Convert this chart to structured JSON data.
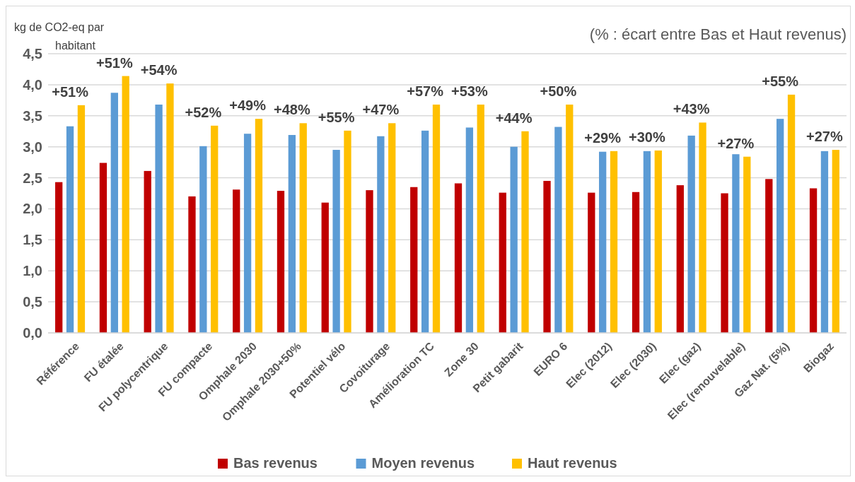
{
  "chart_data": {
    "type": "bar",
    "subtitle": "(% : écart entre Bas et Haut revenus)",
    "ylabel": "kg de CO2-eq par habitant",
    "categories": [
      "Référence",
      "FU étalée",
      "FU polycentrique",
      "FU compacte",
      "Omphale 2030",
      "Omphale 2030+50%",
      "Potentiel vélo",
      "Covoiturage",
      "Amélioration TC",
      "Zone 30",
      "Petit gabarit",
      "EURO 6",
      "Elec (2012)",
      "Elec (2030)",
      "Elec (gaz)",
      "Elec (renouvelable)",
      "Gaz Nat. (5%)",
      "Biogaz"
    ],
    "series": [
      {
        "name": "Bas revenus",
        "color": "#c00000",
        "values": [
          2.43,
          2.74,
          2.61,
          2.2,
          2.31,
          2.29,
          2.1,
          2.3,
          2.35,
          2.41,
          2.26,
          2.45,
          2.26,
          2.27,
          2.38,
          2.25,
          2.48,
          2.33
        ]
      },
      {
        "name": "Moyen revenus",
        "color": "#5b9bd5",
        "values": [
          3.33,
          3.87,
          3.68,
          3.01,
          3.21,
          3.19,
          2.95,
          3.17,
          3.26,
          3.31,
          3.0,
          3.32,
          2.92,
          2.93,
          3.18,
          2.88,
          3.45,
          2.93
        ]
      },
      {
        "name": "Haut revenus",
        "color": "#ffc000",
        "values": [
          3.67,
          4.14,
          4.02,
          3.34,
          3.45,
          3.38,
          3.26,
          3.38,
          3.68,
          3.68,
          3.25,
          3.68,
          2.93,
          2.94,
          3.39,
          2.84,
          3.84,
          2.95
        ]
      }
    ],
    "ylim": [
      0,
      4.5
    ],
    "yticks": [
      {
        "value": 0,
        "label": "0,0"
      },
      {
        "value": 0.5,
        "label": "0,5"
      },
      {
        "value": 1,
        "label": "1,0"
      },
      {
        "value": 1.5,
        "label": "1,5"
      },
      {
        "value": 2,
        "label": "2,0"
      },
      {
        "value": 2.5,
        "label": "2,5"
      },
      {
        "value": 3,
        "label": "3,0"
      },
      {
        "value": 3.5,
        "label": "3,5"
      },
      {
        "value": 4,
        "label": "4,0"
      },
      {
        "value": 4.5,
        "label": "4,5"
      }
    ],
    "grid": "y",
    "legend": "bottom",
    "annotations": [
      {
        "text": "+51%",
        "x": "Référence",
        "y": 3.67
      },
      {
        "text": "+51%",
        "x": "FU étalée",
        "y": 4.14
      },
      {
        "text": "+54%",
        "x": "FU polycentrique",
        "y": 4.02
      },
      {
        "text": "+52%",
        "x": "FU compacte",
        "y": 3.34
      },
      {
        "text": "+49%",
        "x": "Omphale 2030",
        "y": 3.45
      },
      {
        "text": "+48%",
        "x": "Omphale 2030+50%",
        "y": 3.38
      },
      {
        "text": "+55%",
        "x": "Potentiel vélo",
        "y": 3.26
      },
      {
        "text": "+47%",
        "x": "Covoiturage",
        "y": 3.38
      },
      {
        "text": "+57%",
        "x": "Amélioration TC",
        "y": 3.68
      },
      {
        "text": "+53%",
        "x": "Zone 30",
        "y": 3.68
      },
      {
        "text": "+44%",
        "x": "Petit gabarit",
        "y": 3.25
      },
      {
        "text": "+50%",
        "x": "EURO 6",
        "y": 3.68
      },
      {
        "text": "+29%",
        "x": "Elec (2012)",
        "y": 2.93
      },
      {
        "text": "+30%",
        "x": "Elec (2030)",
        "y": 2.94
      },
      {
        "text": "+43%",
        "x": "Elec (gaz)",
        "y": 3.39
      },
      {
        "text": "+27%",
        "x": "Elec (renouvelable)",
        "y": 2.84
      },
      {
        "text": "+55%",
        "x": "Gaz Nat. (5%)",
        "y": 3.84
      },
      {
        "text": "+27%",
        "x": "Biogaz",
        "y": 2.95
      }
    ]
  }
}
